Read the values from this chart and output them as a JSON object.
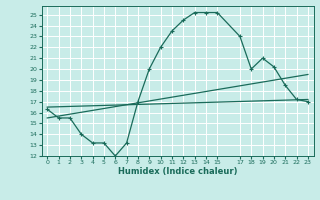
{
  "xlabel": "Humidex (Indice chaleur)",
  "bg_color": "#c8ece8",
  "grid_color": "#ffffff",
  "line_color": "#1a6b5a",
  "xlim": [
    -0.5,
    23.5
  ],
  "ylim": [
    12,
    25.8
  ],
  "xticks": [
    0,
    1,
    2,
    3,
    4,
    5,
    6,
    7,
    8,
    9,
    10,
    11,
    12,
    13,
    14,
    15,
    17,
    18,
    19,
    20,
    21,
    22,
    23
  ],
  "yticks": [
    12,
    13,
    14,
    15,
    16,
    17,
    18,
    19,
    20,
    21,
    22,
    23,
    24,
    25
  ],
  "curve1_x": [
    0,
    1,
    2,
    3,
    4,
    5,
    6,
    7,
    8,
    9,
    10,
    11,
    12,
    13,
    14,
    15,
    17,
    18,
    19,
    20,
    21,
    22,
    23
  ],
  "curve1_y": [
    16.3,
    15.5,
    15.5,
    14.0,
    13.2,
    13.2,
    12.0,
    13.2,
    17.0,
    20.0,
    22.0,
    23.5,
    24.5,
    25.2,
    25.2,
    25.2,
    23.0,
    20.0,
    21.0,
    20.2,
    18.5,
    17.2,
    17.0
  ],
  "line1_x": [
    0,
    23
  ],
  "line1_y": [
    15.5,
    19.5
  ],
  "line2_x": [
    0,
    23
  ],
  "line2_y": [
    16.5,
    17.2
  ]
}
